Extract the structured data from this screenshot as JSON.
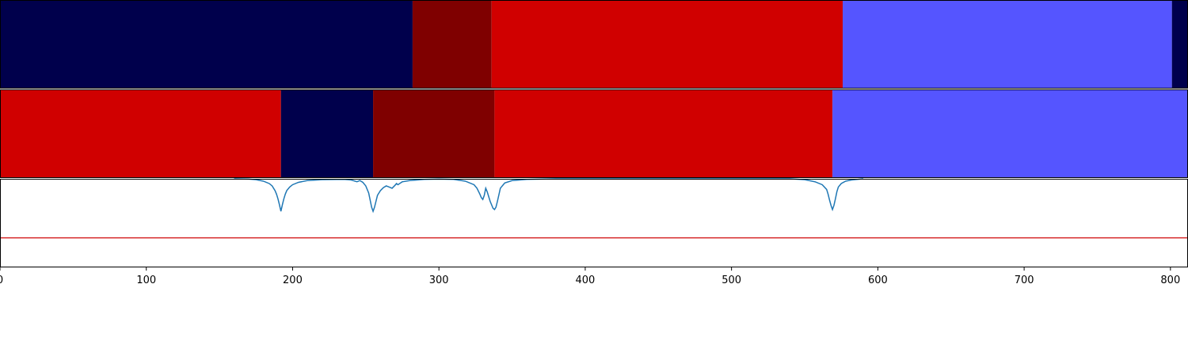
{
  "chart_data": {
    "type": "segmentation-track",
    "xlim": [
      0,
      812
    ],
    "x_ticks": [
      0,
      100,
      200,
      300,
      400,
      500,
      600,
      700,
      800
    ],
    "tracks": [
      {
        "segments": [
          {
            "start": 0,
            "end": 282,
            "color": "#00004c"
          },
          {
            "start": 282,
            "end": 336,
            "color": "#7f0000"
          },
          {
            "start": 336,
            "end": 576,
            "color": "#d00000"
          },
          {
            "start": 576,
            "end": 801,
            "color": "#5555ff"
          },
          {
            "start": 801,
            "end": 812,
            "color": "#00004c"
          }
        ]
      },
      {
        "segments": [
          {
            "start": 0,
            "end": 192,
            "color": "#d00000"
          },
          {
            "start": 192,
            "end": 255,
            "color": "#00004c"
          },
          {
            "start": 255,
            "end": 338,
            "color": "#7f0000"
          },
          {
            "start": 338,
            "end": 569,
            "color": "#d00000"
          },
          {
            "start": 569,
            "end": 812,
            "color": "#5555ff"
          }
        ]
      }
    ],
    "signal": {
      "color": "#1f77b4",
      "ylim": [
        -0.5,
        1.0
      ],
      "x": [
        160,
        170,
        175,
        180,
        184,
        186,
        188,
        189,
        190,
        191,
        192,
        193,
        194,
        195,
        196,
        198,
        200,
        204,
        210,
        220,
        235,
        240,
        244,
        246,
        248,
        250,
        252,
        253,
        254,
        255,
        256,
        257,
        258,
        260,
        262,
        264,
        266,
        268,
        270,
        271,
        272,
        275,
        280,
        290,
        300,
        310,
        318,
        324,
        326,
        328,
        329,
        330,
        331,
        332,
        333,
        334,
        335,
        336,
        337,
        338,
        339,
        340,
        342,
        345,
        350,
        360,
        380,
        400,
        540,
        550,
        557,
        562,
        565,
        566,
        567,
        568,
        569,
        570,
        571,
        572,
        573,
        575,
        578,
        582,
        586,
        590
      ],
      "y": [
        1.0,
        0.995,
        0.985,
        0.96,
        0.92,
        0.88,
        0.8,
        0.74,
        0.66,
        0.56,
        0.45,
        0.56,
        0.66,
        0.74,
        0.8,
        0.86,
        0.9,
        0.94,
        0.97,
        0.985,
        0.99,
        0.98,
        0.95,
        0.97,
        0.94,
        0.88,
        0.76,
        0.64,
        0.52,
        0.45,
        0.52,
        0.62,
        0.72,
        0.8,
        0.85,
        0.88,
        0.86,
        0.84,
        0.89,
        0.92,
        0.9,
        0.95,
        0.97,
        0.99,
        0.995,
        0.99,
        0.96,
        0.9,
        0.84,
        0.74,
        0.68,
        0.65,
        0.72,
        0.84,
        0.78,
        0.7,
        0.62,
        0.56,
        0.5,
        0.48,
        0.52,
        0.62,
        0.84,
        0.93,
        0.97,
        0.99,
        1.0,
        1.0,
        1.0,
        0.985,
        0.95,
        0.9,
        0.82,
        0.74,
        0.64,
        0.55,
        0.48,
        0.55,
        0.66,
        0.78,
        0.86,
        0.92,
        0.96,
        0.98,
        0.99,
        1.0
      ],
      "threshold": {
        "y": 0.0,
        "color": "#d62728"
      }
    }
  }
}
